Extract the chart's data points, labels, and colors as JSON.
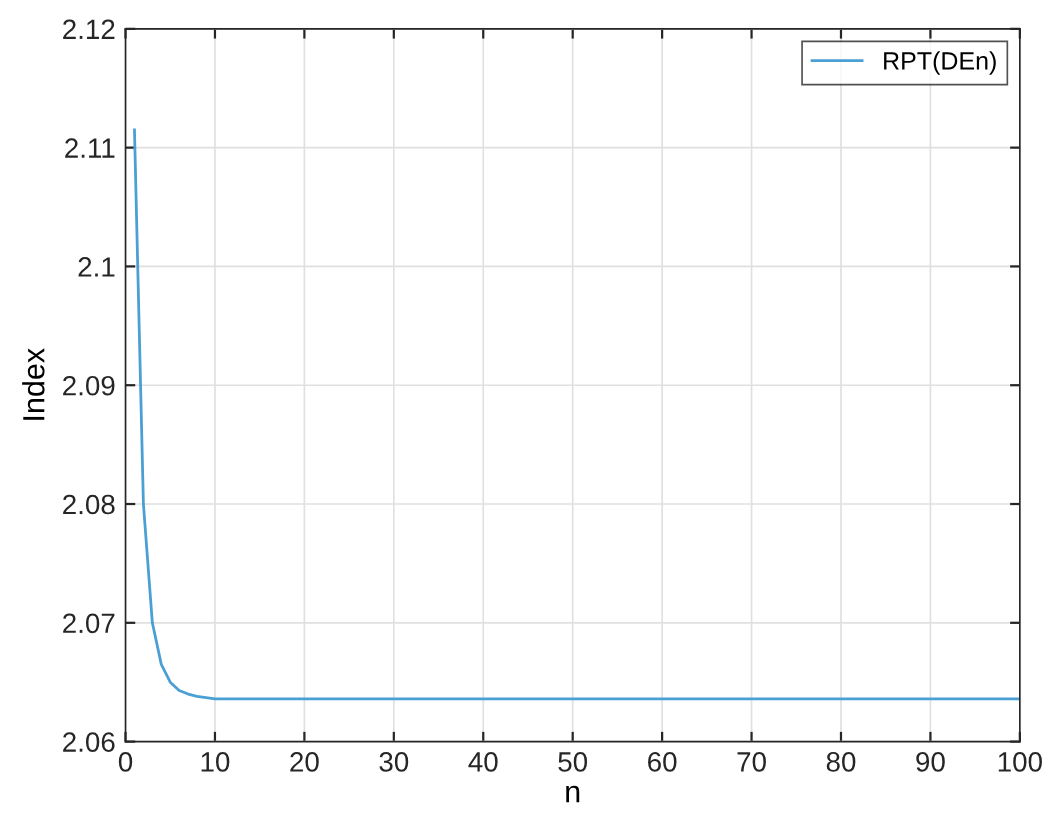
{
  "chart_data": {
    "type": "line",
    "xlabel": "n",
    "ylabel": "Index",
    "series": [
      {
        "name": "RPT(DEn)",
        "color": "#4a9fd4",
        "x": [
          1,
          2,
          3,
          4,
          5,
          6,
          7,
          8,
          10,
          20,
          40,
          60,
          80,
          100
        ],
        "values": [
          2.1115,
          2.08,
          2.07,
          2.0665,
          2.065,
          2.0643,
          2.064,
          2.0638,
          2.0636,
          2.0636,
          2.0636,
          2.0636,
          2.0636,
          2.0636
        ]
      }
    ],
    "xlim": [
      0,
      100
    ],
    "ylim": [
      2.06,
      2.12
    ],
    "xticks": [
      0,
      10,
      20,
      30,
      40,
      50,
      60,
      70,
      80,
      90,
      100
    ],
    "yticks": [
      2.06,
      2.07,
      2.08,
      2.09,
      2.1,
      2.11,
      2.12
    ],
    "grid": true,
    "legend": "top right"
  }
}
